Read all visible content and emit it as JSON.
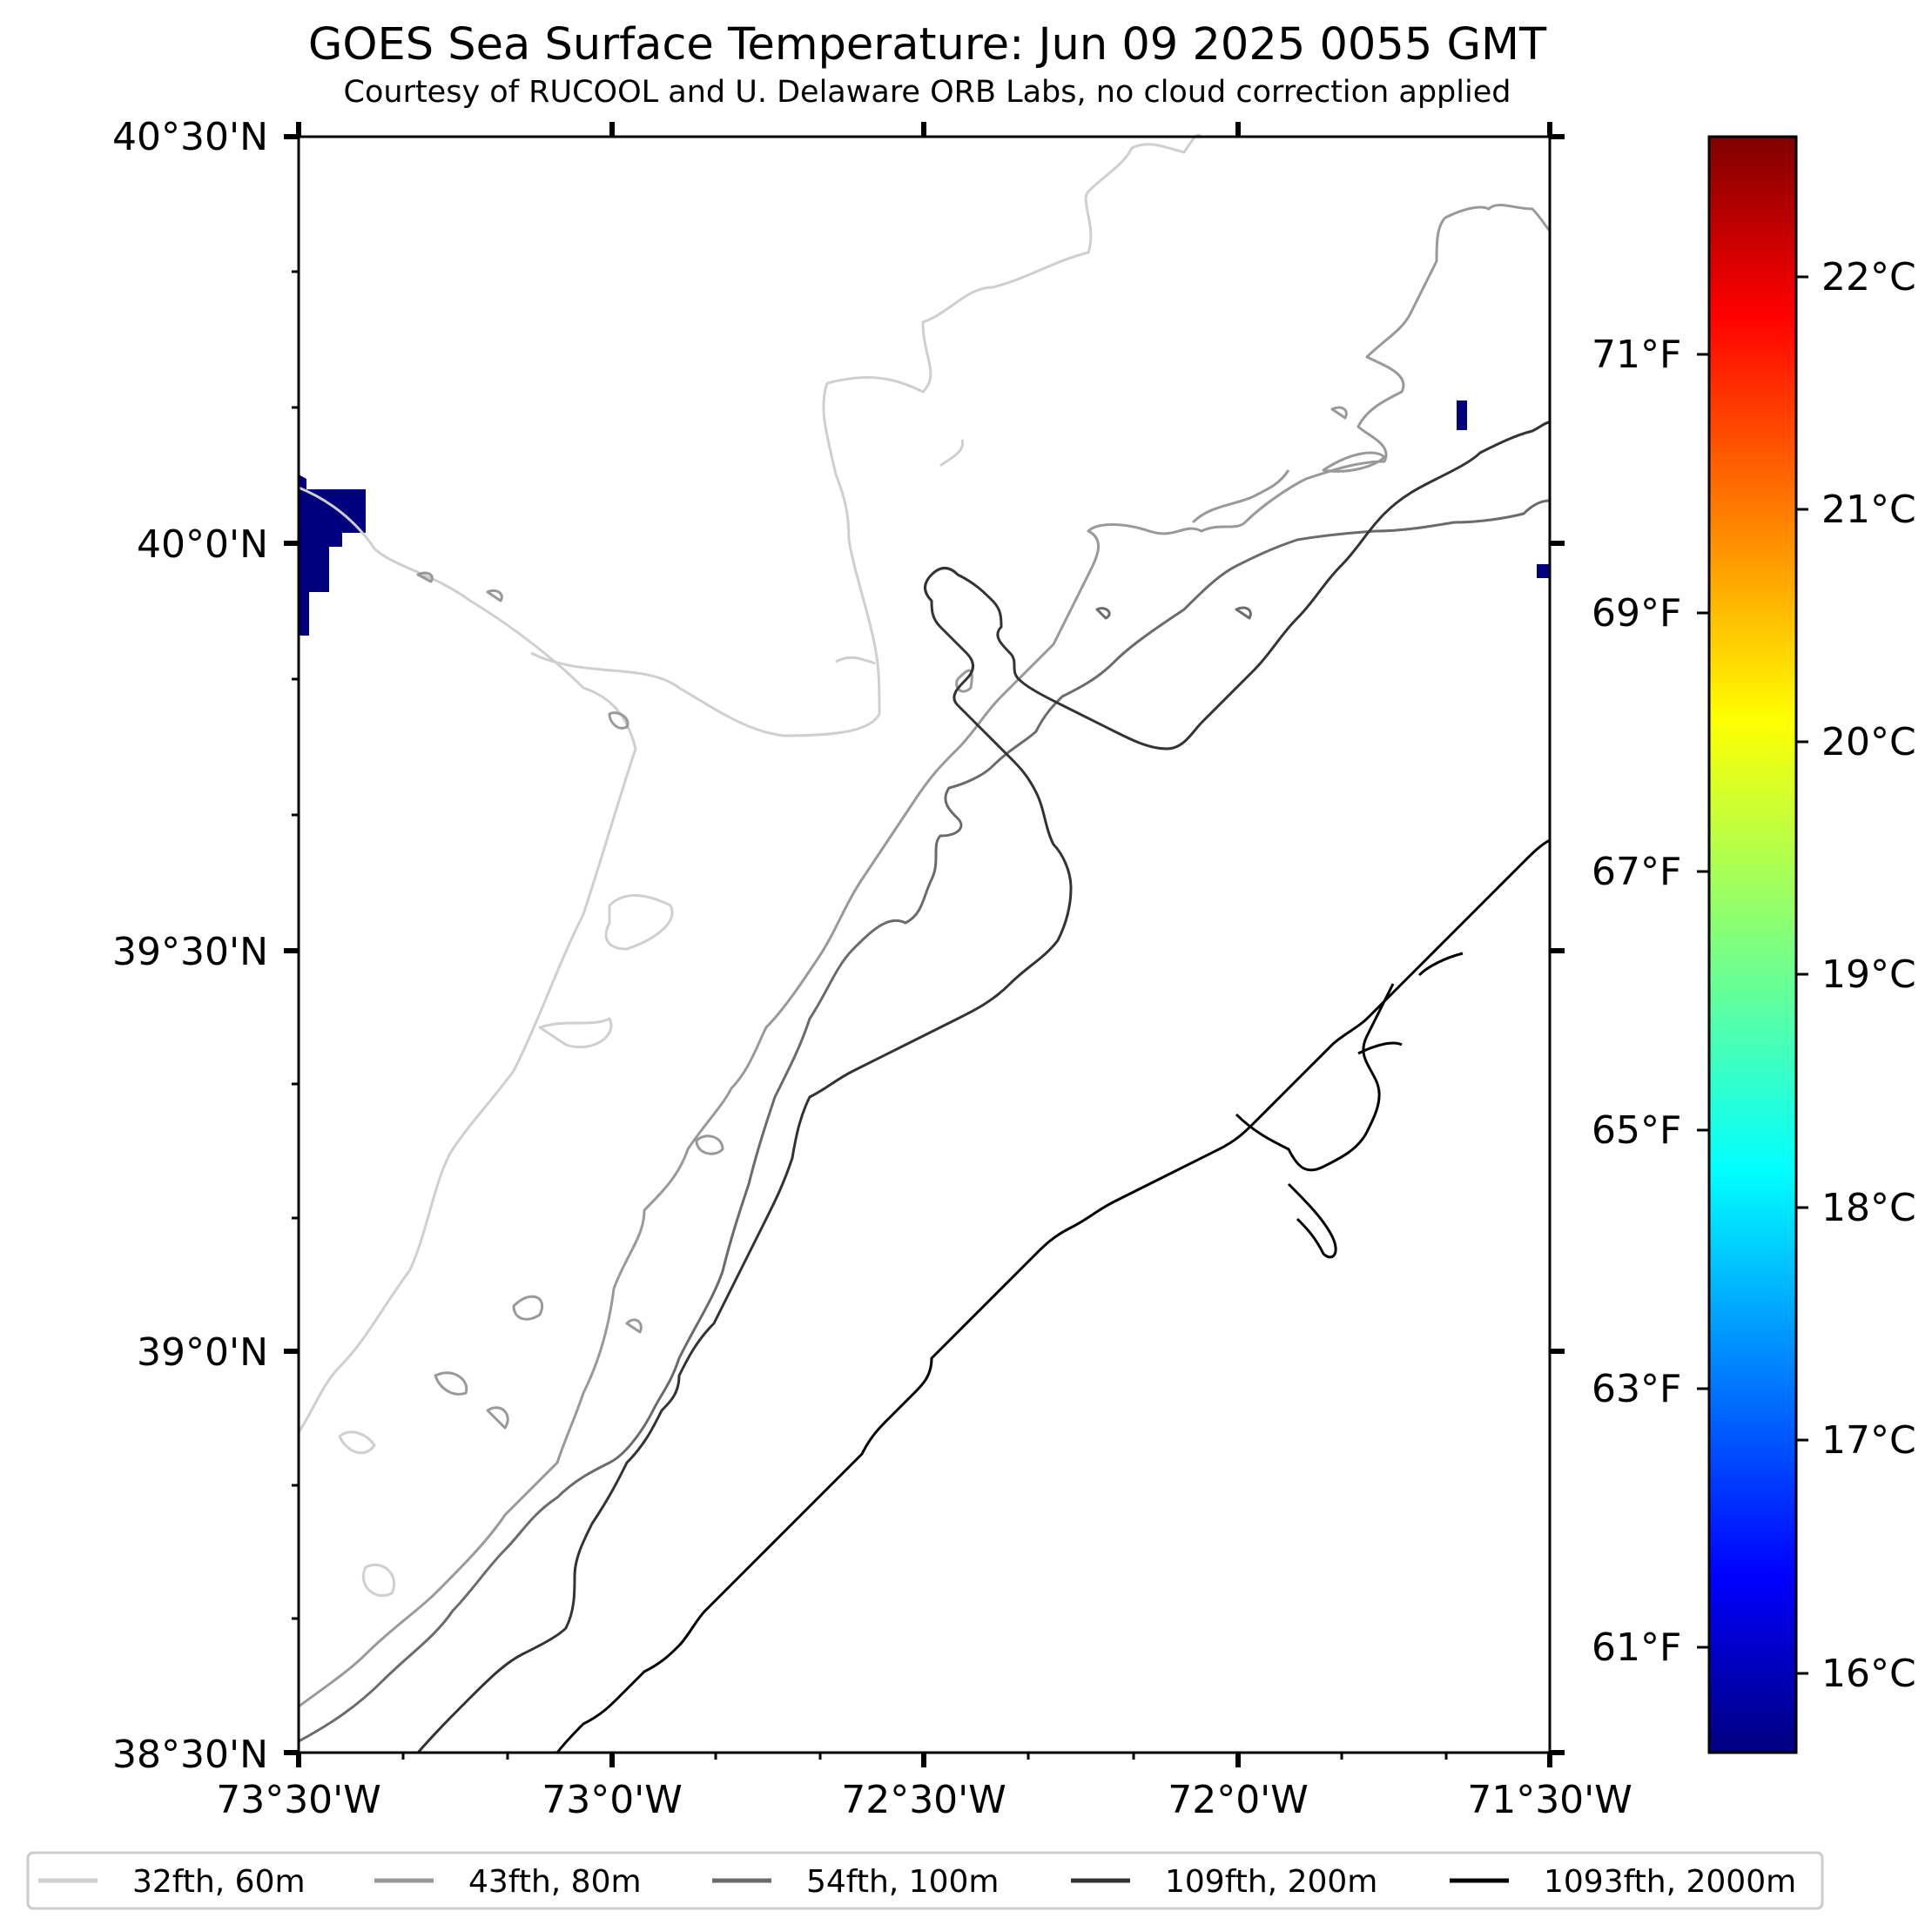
{
  "title": "GOES Sea Surface Temperature: Jun 09 2025 0055 GMT",
  "subtitle": "Courtesy of RUCOOL and U. Delaware ORB Labs, no cloud correction applied",
  "map": {
    "lat_labels": [
      "40°30'N",
      "40°0'N",
      "39°30'N",
      "39°0'N",
      "38°30'N"
    ],
    "lon_labels": [
      "73°30'W",
      "73°0'W",
      "72°30'W",
      "72°0'W",
      "71°30'W"
    ],
    "missing_color": "#00007f",
    "contour_colors": {
      "c60": "#cfcfcf",
      "c80": "#999999",
      "c100": "#6b6b6b",
      "c200": "#333333",
      "c2000": "#000000"
    }
  },
  "colorbar": {
    "celsius_labels": [
      "22°C",
      "21°C",
      "20°C",
      "19°C",
      "18°C",
      "17°C",
      "16°C"
    ],
    "fahrenheit_labels": [
      "71°F",
      "69°F",
      "67°F",
      "65°F",
      "63°F",
      "61°F"
    ],
    "colormap": "jet",
    "colormap_stops": [
      "#00007f",
      "#0000ff",
      "#007fff",
      "#00ffff",
      "#7fff7f",
      "#ffff00",
      "#ff7f00",
      "#ff0000",
      "#7f0000"
    ]
  },
  "legend": {
    "items": [
      {
        "label": "32fth, 60m",
        "color": "#cfcfcf"
      },
      {
        "label": "43fth, 80m",
        "color": "#999999"
      },
      {
        "label": "54fth, 100m",
        "color": "#6b6b6b"
      },
      {
        "label": "109fth, 200m",
        "color": "#333333"
      },
      {
        "label": "1093fth, 2000m",
        "color": "#000000"
      }
    ]
  }
}
